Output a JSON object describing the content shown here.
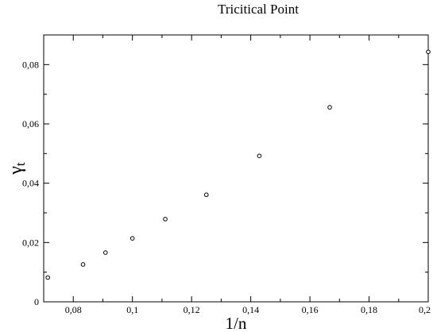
{
  "chart_data": {
    "type": "scatter",
    "title": "Tricitical Point",
    "xlabel": "1/n",
    "ylabel": {
      "base": "γ",
      "subscript": "t"
    },
    "xlim": [
      0.07,
      0.2
    ],
    "ylim": [
      0,
      0.09
    ],
    "x_ticks": [
      {
        "value": 0.08,
        "label": "0,08"
      },
      {
        "value": 0.1,
        "label": "0,1"
      },
      {
        "value": 0.12,
        "label": "0,12"
      },
      {
        "value": 0.14,
        "label": "0,14"
      },
      {
        "value": 0.16,
        "label": "0,16"
      },
      {
        "value": 0.18,
        "label": "0,18"
      },
      {
        "value": 0.2,
        "label": "0,2"
      }
    ],
    "y_ticks": [
      {
        "value": 0,
        "label": "0"
      },
      {
        "value": 0.02,
        "label": "0,02"
      },
      {
        "value": 0.04,
        "label": "0,04"
      },
      {
        "value": 0.06,
        "label": "0,06"
      },
      {
        "value": 0.08,
        "label": "0,08"
      }
    ],
    "x_minor_step": 0.01,
    "y_minor_step": 0.01,
    "grid": false,
    "marker": "open-circle",
    "series": [
      {
        "x": [
          0.0714,
          0.0833,
          0.0909,
          0.1,
          0.1111,
          0.125,
          0.1429,
          0.1667,
          0.2
        ],
        "y": [
          0.0082,
          0.0126,
          0.0166,
          0.0214,
          0.0279,
          0.0361,
          0.0492,
          0.0656,
          0.0843
        ]
      }
    ]
  }
}
